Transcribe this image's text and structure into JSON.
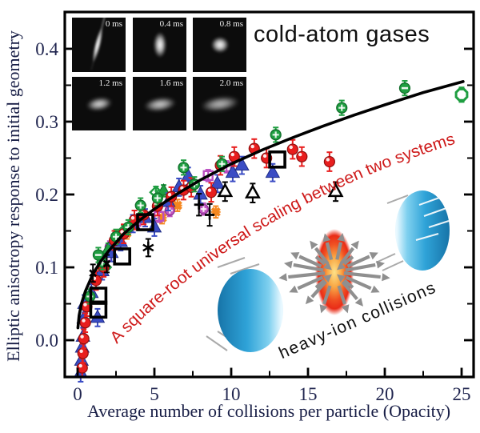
{
  "annotations": {
    "cold_atom_label": "cold-atom gases",
    "scaling_label": "A square-root universal scaling between two systems",
    "heavy_ion_label": "heavy-ion collisions"
  },
  "inset": {
    "panels": [
      {
        "time": "0 ms"
      },
      {
        "time": "0.4 ms"
      },
      {
        "time": "0.8 ms"
      },
      {
        "time": "1.2 ms"
      },
      {
        "time": "1.6 ms"
      },
      {
        "time": "2.0 ms"
      }
    ]
  },
  "colors": {
    "accent_red": "#ce1a1a",
    "curve": "#000000",
    "axis_label": "#20254f",
    "nucleus_blue": "#2fa3d8",
    "explosion_orange": "#f05022",
    "arrow_gray": "#8f8f8f"
  },
  "chart_data": {
    "type": "scatter",
    "title": "",
    "xlabel": "Average number of collisions per particle (Opacity)",
    "ylabel": "Elliptic anisotropy response to initial geometry",
    "xlim": [
      -0.833,
      25.781
    ],
    "ylim": [
      -0.0505,
      0.4505
    ],
    "grid": false,
    "legend": "none",
    "x_ticks": [
      0,
      5,
      10,
      15,
      20,
      25
    ],
    "x_tick_labels": [
      "0",
      "5",
      "10",
      "15",
      "20",
      "25"
    ],
    "x_minor_ticks": [
      2.5,
      7.5,
      12.5,
      17.5,
      22.5
    ],
    "y_ticks": [
      0.0,
      0.1,
      0.2,
      0.3,
      0.4
    ],
    "y_tick_labels": [
      "0.0",
      "0.1",
      "0.2",
      "0.3",
      "0.4"
    ],
    "y_minor_ticks": [
      0.05,
      0.15,
      0.25,
      0.35
    ],
    "curve": {
      "description": "square-root universal scaling fit",
      "samples": [
        [
          0.02,
          0.017
        ],
        [
          0.1,
          0.034
        ],
        [
          0.25,
          0.05
        ],
        [
          0.5,
          0.067
        ],
        [
          1,
          0.091
        ],
        [
          1.5,
          0.108
        ],
        [
          2,
          0.122
        ],
        [
          3,
          0.146
        ],
        [
          4,
          0.164
        ],
        [
          5,
          0.18
        ],
        [
          6.5,
          0.201
        ],
        [
          8,
          0.22
        ],
        [
          10,
          0.242
        ],
        [
          12,
          0.261
        ],
        [
          14,
          0.278
        ],
        [
          16,
          0.294
        ],
        [
          18,
          0.309
        ],
        [
          20,
          0.323
        ],
        [
          22.5,
          0.34
        ],
        [
          25.1,
          0.355
        ]
      ]
    },
    "series": [
      {
        "name": "orange-crosses",
        "marker": "star4",
        "color": "#f5871f",
        "edge": "#b85c0a",
        "size": 13,
        "error": 0.008,
        "points": [
          [
            1.4,
            0.09
          ],
          [
            3.2,
            0.147
          ],
          [
            5.5,
            0.168
          ],
          [
            6.5,
            0.185
          ],
          [
            9.0,
            0.176
          ]
        ]
      },
      {
        "name": "magenta-open-squares",
        "marker": "square-open-small",
        "color": "#bb4fc0",
        "edge": "#8a2e94",
        "size": 11,
        "error": 0.008,
        "points": [
          [
            1.9,
            0.115
          ],
          [
            3.8,
            0.163
          ],
          [
            5.3,
            0.17
          ],
          [
            8.5,
            0.226
          ],
          [
            9.7,
            0.238
          ]
        ]
      },
      {
        "name": "magenta-circles-cross",
        "marker": "circle-cross",
        "color": "#c055c0",
        "edge": "#8a2e94",
        "size": 12,
        "error": 0.008,
        "points": [
          [
            2.1,
            0.128
          ],
          [
            6.0,
            0.178
          ],
          [
            8.2,
            0.18
          ]
        ]
      },
      {
        "name": "green-open-diamonds",
        "marker": "diamond-open",
        "color": "#1f9e41",
        "edge": "#0e6b28",
        "size": 12,
        "error": 0.008,
        "points": [
          [
            1.8,
            0.1
          ],
          [
            3.0,
            0.15
          ],
          [
            5.1,
            0.203
          ]
        ]
      },
      {
        "name": "green-triangles",
        "marker": "triangle-up",
        "color": "#1f9e41",
        "edge": "#0e6b28",
        "size": 13,
        "error": 0.008,
        "points": [
          [
            2.0,
            0.125
          ],
          [
            5.6,
            0.205
          ]
        ]
      },
      {
        "name": "blue-triangles",
        "marker": "triangle-up",
        "color": "#3a4cc4",
        "edge": "#1f2c86",
        "size": 14,
        "error": 0.012,
        "points": [
          [
            0.2,
            -0.045
          ],
          [
            0.25,
            -0.028
          ],
          [
            0.3,
            -0.01
          ],
          [
            0.35,
            0.005
          ],
          [
            0.4,
            0.03
          ],
          [
            0.45,
            0.05
          ],
          [
            0.9,
            0.065
          ],
          [
            1.3,
            0.031
          ],
          [
            1.6,
            0.095
          ],
          [
            2.2,
            0.12
          ],
          [
            2.8,
            0.135
          ],
          [
            3.6,
            0.16
          ],
          [
            4.4,
            0.168
          ],
          [
            5.0,
            0.155
          ],
          [
            5.9,
            0.19
          ],
          [
            6.6,
            0.21
          ],
          [
            7.2,
            0.225
          ],
          [
            8.0,
            0.2
          ],
          [
            9.1,
            0.215
          ],
          [
            10.1,
            0.23
          ],
          [
            10.7,
            0.24
          ],
          [
            12.7,
            0.23
          ]
        ]
      },
      {
        "name": "red-circles",
        "marker": "circle-gloss",
        "color": "#e81e1e",
        "edge": "#8f0f0f",
        "size": 13,
        "error": 0.013,
        "points": [
          [
            0.3,
            -0.038
          ],
          [
            0.35,
            -0.018
          ],
          [
            0.4,
            0.002
          ],
          [
            0.5,
            0.024
          ],
          [
            0.6,
            0.046
          ],
          [
            1.2,
            0.082
          ],
          [
            1.7,
            0.1
          ],
          [
            2.4,
            0.137
          ],
          [
            3.0,
            0.146
          ],
          [
            3.7,
            0.165
          ],
          [
            4.3,
            0.172
          ],
          [
            5.2,
            0.184
          ],
          [
            6.1,
            0.197
          ],
          [
            6.9,
            0.206
          ],
          [
            7.4,
            0.21
          ],
          [
            8.7,
            0.203
          ],
          [
            9.3,
            0.24
          ],
          [
            10.2,
            0.252
          ],
          [
            11.5,
            0.263
          ],
          [
            12.3,
            0.25
          ],
          [
            14.0,
            0.262
          ],
          [
            14.6,
            0.252
          ],
          [
            16.4,
            0.245
          ]
        ]
      },
      {
        "name": "green-circles-cross",
        "marker": "circle-cross",
        "color": "#1f9e41",
        "edge": "#0e6b28",
        "size": 13,
        "error": 0.01,
        "points": [
          [
            0.8,
            0.06
          ],
          [
            1.6,
            0.107
          ],
          [
            2.5,
            0.142
          ],
          [
            3.3,
            0.155
          ],
          [
            4.1,
            0.185
          ],
          [
            5.2,
            0.195
          ],
          [
            6.9,
            0.237
          ],
          [
            7.6,
            0.214
          ],
          [
            9.4,
            0.242
          ],
          [
            12.9,
            0.282
          ],
          [
            17.2,
            0.319
          ]
        ]
      },
      {
        "name": "green-circles-minus",
        "marker": "circle-minus",
        "color": "#1f9e41",
        "edge": "#0e6b28",
        "size": 13,
        "error": 0.01,
        "points": [
          [
            1.35,
            0.117
          ],
          [
            21.3,
            0.346
          ]
        ]
      },
      {
        "name": "green-open-octagon",
        "marker": "octagon-open",
        "color": "#1f9e41",
        "edge": "#0e6b28",
        "size": 13,
        "error": 0.01,
        "points": [
          [
            25.0,
            0.337
          ]
        ]
      },
      {
        "name": "black-x",
        "marker": "x-cross",
        "color": "#000000",
        "edge": "#000000",
        "size": 11,
        "error": 0.012,
        "points": [
          [
            1.0,
            0.092
          ],
          [
            1.9,
            0.105
          ]
        ]
      },
      {
        "name": "black-plus",
        "marker": "plus",
        "color": "#000000",
        "edge": "#000000",
        "size": 12,
        "error": 0.015,
        "points": [
          [
            7.9,
            0.186
          ],
          [
            8.6,
            0.172
          ]
        ]
      },
      {
        "name": "black-stars",
        "marker": "asterisk",
        "color": "#000000",
        "edge": "#000000",
        "size": 15,
        "error": 0.012,
        "points": [
          [
            4.6,
            0.127
          ]
        ]
      },
      {
        "name": "black-open-triangles",
        "marker": "triangle-open",
        "color": "#000000",
        "edge": "#000000",
        "size": 13,
        "error": 0.013,
        "points": [
          [
            9.6,
            0.204
          ],
          [
            11.4,
            0.202
          ],
          [
            16.8,
            0.204
          ]
        ]
      },
      {
        "name": "black-open-squares",
        "marker": "square-open-big",
        "color": "#000000",
        "edge": "#000000",
        "size": 19,
        "error": 0,
        "points": [
          [
            1.35,
            0.042
          ],
          [
            1.35,
            0.061
          ],
          [
            2.9,
            0.115
          ],
          [
            4.4,
            0.162
          ],
          [
            13.0,
            0.248
          ]
        ]
      }
    ]
  }
}
